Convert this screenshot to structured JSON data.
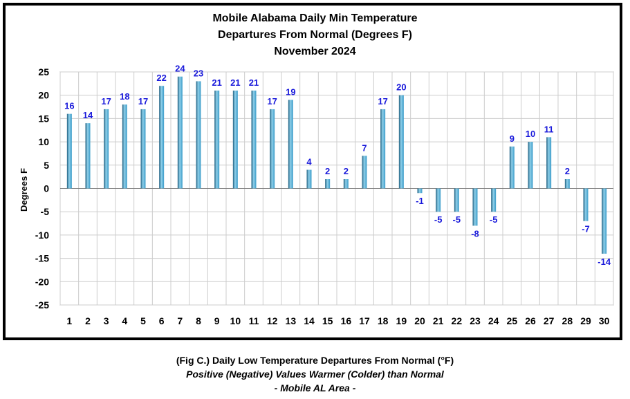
{
  "chart_data": {
    "type": "bar",
    "title_lines": [
      "Mobile Alabama Daily Min Temperature",
      "Departures From Normal (Degrees F)",
      "November 2024"
    ],
    "xlabel": "",
    "ylabel": "Degrees F",
    "ylim": [
      -25,
      25
    ],
    "yticks": [
      25,
      20,
      15,
      10,
      5,
      0,
      -5,
      -10,
      -15,
      -20,
      -25
    ],
    "grid": true,
    "legend": "none",
    "categories": [
      "1",
      "2",
      "3",
      "4",
      "5",
      "6",
      "7",
      "8",
      "9",
      "10",
      "11",
      "12",
      "13",
      "14",
      "15",
      "16",
      "17",
      "18",
      "19",
      "20",
      "21",
      "22",
      "23",
      "24",
      "25",
      "26",
      "27",
      "28",
      "29",
      "30"
    ],
    "values": [
      16,
      14,
      17,
      18,
      17,
      22,
      24,
      23,
      21,
      21,
      21,
      17,
      19,
      4,
      2,
      2,
      7,
      17,
      20,
      -1,
      -5,
      -5,
      -8,
      -5,
      9,
      10,
      11,
      2,
      -7,
      -14
    ],
    "colors": {
      "bar": "#3a9bc8",
      "bar_dark": "#1f5f80",
      "bar_light": "#8fd0ea",
      "data_label": "#1a1adb",
      "grid": "#cccccc",
      "frame": "#000000"
    }
  },
  "caption": {
    "line1": "(Fig C.) Daily Low Temperature Departures From Normal (°F)",
    "line2": "Positive (Negative) Values Warmer (Colder) than Normal",
    "line3": "- Mobile AL Area -"
  }
}
